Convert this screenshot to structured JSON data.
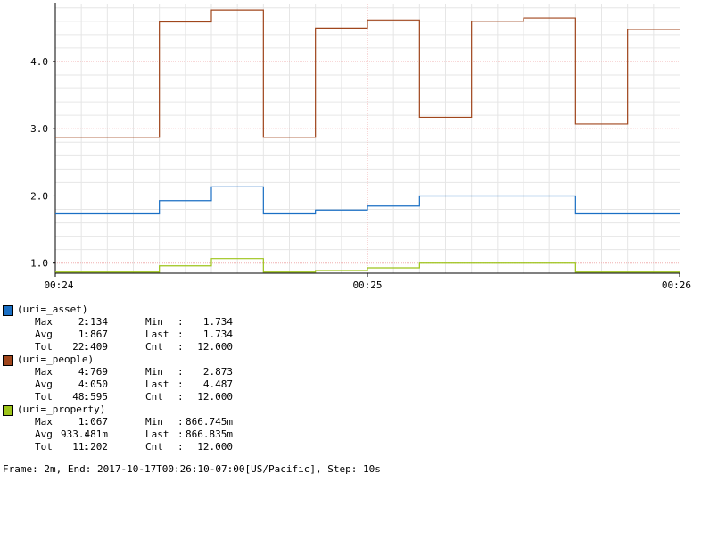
{
  "chart_data": {
    "type": "line",
    "step": true,
    "x_ticks": [
      "00:24",
      "00:25",
      "00:26"
    ],
    "y_ticks": [
      "1.0",
      "2.0",
      "3.0",
      "4.0"
    ],
    "y_tick_values": [
      1.0,
      2.0,
      3.0,
      4.0
    ],
    "ylim": [
      0.85,
      4.85
    ],
    "grid": true,
    "series": [
      {
        "name": "(uri=_asset)",
        "color": "#1a6fc4",
        "values": [
          1.734,
          1.734,
          1.93,
          2.134,
          1.734,
          1.79,
          1.85,
          2.0,
          2.0,
          2.0,
          1.734,
          1.734,
          1.734
        ]
      },
      {
        "name": "(uri=_people)",
        "color": "#a0461c",
        "values": [
          2.873,
          2.873,
          4.59,
          4.769,
          2.873,
          4.5,
          4.62,
          3.17,
          4.6,
          4.65,
          3.07,
          4.48,
          4.487
        ]
      },
      {
        "name": "(uri=_property)",
        "color": "#9dc41a",
        "values": [
          0.8667,
          0.8667,
          0.96,
          1.067,
          0.8667,
          0.89,
          0.93,
          1.0,
          1.0,
          1.0,
          0.8668,
          0.8668,
          0.8668
        ]
      }
    ]
  },
  "legend": [
    {
      "name": "(uri=_asset)",
      "color": "#1a6fc4",
      "stats": [
        [
          "Max",
          "2.134",
          "Min",
          "1.734"
        ],
        [
          "Avg",
          "1.867",
          "Last",
          "1.734"
        ],
        [
          "Tot",
          "22.409",
          "Cnt",
          "12.000"
        ]
      ]
    },
    {
      "name": "(uri=_people)",
      "color": "#a0461c",
      "stats": [
        [
          "Max",
          "4.769",
          "Min",
          "2.873"
        ],
        [
          "Avg",
          "4.050",
          "Last",
          "4.487"
        ],
        [
          "Tot",
          "48.595",
          "Cnt",
          "12.000"
        ]
      ]
    },
    {
      "name": "(uri=_property)",
      "color": "#9dc41a",
      "stats": [
        [
          "Max",
          "1.067",
          "Min",
          "866.745m"
        ],
        [
          "Avg",
          "933.481m",
          "Last",
          "866.835m"
        ],
        [
          "Tot",
          "11.202",
          "Cnt",
          "12.000"
        ]
      ]
    }
  ],
  "footer": "Frame: 2m, End: 2017-10-17T00:26:10-07:00[US/Pacific], Step: 10s"
}
